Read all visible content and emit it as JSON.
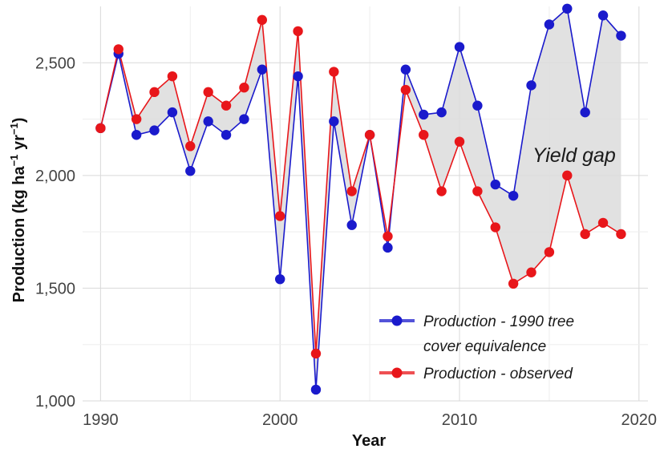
{
  "chart_data": {
    "type": "line",
    "xlabel": "Year",
    "ylabel_main": "Production (kg ha",
    "ylabel_sup1": "−1",
    "ylabel_mid": " yr",
    "ylabel_sup2": "−1",
    "ylabel_end": ")",
    "xlim": [
      1989,
      2020.5
    ],
    "ylim": [
      1000,
      2750
    ],
    "x_ticks": [
      1990,
      2000,
      2010,
      2020
    ],
    "x_tick_labels": [
      "1990",
      "2000",
      "2010",
      "2020"
    ],
    "y_ticks": [
      1000,
      1500,
      2000,
      2500
    ],
    "y_tick_labels": [
      "1,000",
      "1,500",
      "2,000",
      "2,500"
    ],
    "grid": true,
    "legend_position": "bottom-right",
    "annotation": "Yield gap",
    "gap_fill_color": "#dcdcdc",
    "x": [
      1990,
      1991,
      1992,
      1993,
      1994,
      1995,
      1996,
      1997,
      1998,
      1999,
      2000,
      2001,
      2002,
      2003,
      2004,
      2005,
      2006,
      2007,
      2008,
      2009,
      2010,
      2011,
      2012,
      2013,
      2014,
      2015,
      2016,
      2017,
      2018,
      2019
    ],
    "series": [
      {
        "name": "Production - 1990 tree cover equivalence",
        "legend_lines": [
          "Production - 1990 tree",
          "cover equivalence"
        ],
        "color": "#1a1acc",
        "values": [
          2210,
          2540,
          2180,
          2200,
          2280,
          2020,
          2240,
          2180,
          2250,
          2470,
          1540,
          2440,
          1050,
          2240,
          1780,
          2180,
          1680,
          2470,
          2270,
          2280,
          2570,
          2310,
          1960,
          1910,
          2400,
          2670,
          2740,
          2280,
          2710,
          2620
        ]
      },
      {
        "name": "Production - observed",
        "legend_lines": [
          "Production - observed"
        ],
        "color": "#e8161a",
        "values": [
          2210,
          2560,
          2250,
          2370,
          2440,
          2130,
          2370,
          2310,
          2390,
          2690,
          1820,
          2640,
          1210,
          2460,
          1930,
          2180,
          1730,
          2380,
          2180,
          1930,
          2150,
          1930,
          1770,
          1520,
          1570,
          1660,
          2000,
          1740,
          1790,
          1740
        ]
      }
    ]
  }
}
